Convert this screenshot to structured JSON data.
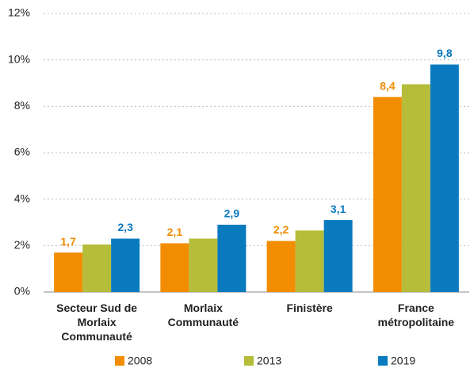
{
  "chart_data": {
    "type": "bar",
    "categories": [
      "Secteur Sud de Morlaix Communauté",
      "Morlaix Communauté",
      "Finistère",
      "France métropolitaine"
    ],
    "series": [
      {
        "name": "2008",
        "color": "#f28c00",
        "values": [
          1.7,
          2.1,
          2.2,
          8.4
        ],
        "value_labels": [
          "1,7",
          "2,1",
          "2,2",
          "8,4"
        ]
      },
      {
        "name": "2013",
        "color": "#b5bd3a",
        "values": [
          2.05,
          2.3,
          2.65,
          8.95
        ]
      },
      {
        "name": "2019",
        "color": "#0a7abf",
        "values": [
          2.3,
          2.9,
          3.1,
          9.8
        ],
        "value_labels": [
          "2,3",
          "2,9",
          "3,1",
          "9,8"
        ]
      }
    ],
    "ylim": [
      0,
      12
    ],
    "yticks": [
      {
        "value": 0,
        "label": "0%"
      },
      {
        "value": 2,
        "label": "2%"
      },
      {
        "value": 4,
        "label": "4%"
      },
      {
        "value": 6,
        "label": "6%"
      },
      {
        "value": 8,
        "label": "8%"
      },
      {
        "value": 10,
        "label": "10%"
      },
      {
        "value": 12,
        "label": "12%"
      }
    ],
    "grid": true,
    "legend": "bottom"
  }
}
